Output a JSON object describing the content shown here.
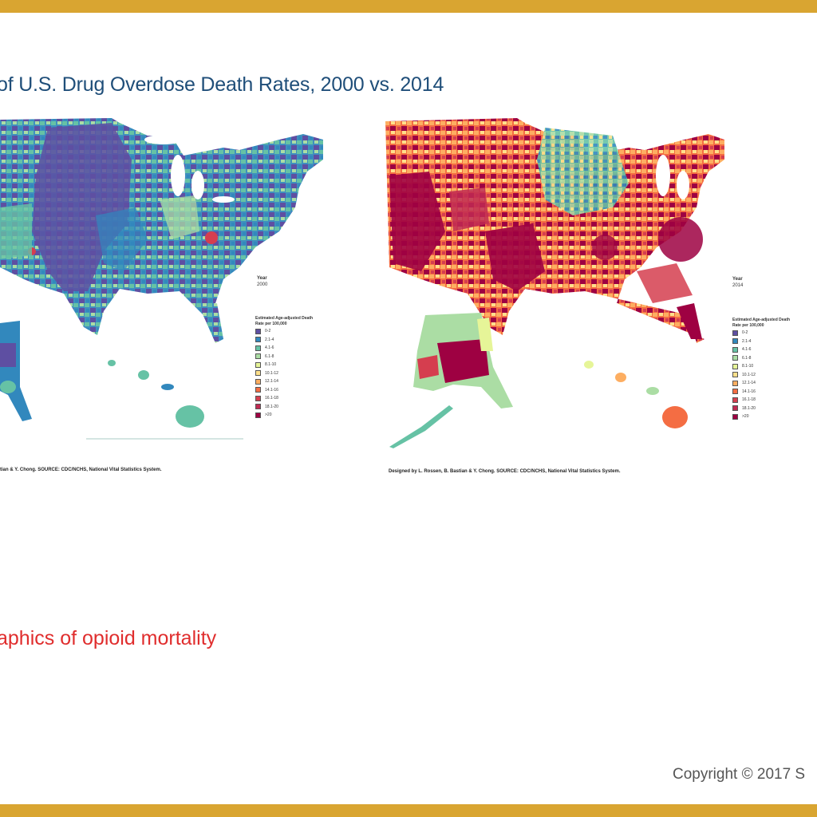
{
  "slide": {
    "title": "of U.S. Drug Overdose Death Rates, 2000 vs. 2014",
    "subtitle": "aphics of opioid mortality",
    "copyright": "Copyright © 2017 S",
    "accent_color": "#d9a531",
    "title_color": "#1f4e79",
    "subtitle_color": "#e02d2d"
  },
  "map_left": {
    "year_label": "Year",
    "year_value": "2000",
    "legend_title": "Estimated Age-adjusted Death Rate per 100,000",
    "credit": "tian & Y. Chong. SOURCE: CDC/NCHS, National Vital Statistics System.",
    "dominant_colors": [
      "#5e4fa2",
      "#3288bd",
      "#66c2a5",
      "#abdda4"
    ]
  },
  "map_right": {
    "year_label": "Year",
    "year_value": "2014",
    "legend_title": "Estimated Age-adjusted Death Rate per 100,000",
    "credit": "Designed by L. Rossen, B. Bastian & Y. Chong. SOURCE: CDC/NCHS, National Vital Statistics System.",
    "dominant_colors": [
      "#9e0142",
      "#d53e4f",
      "#f46d43",
      "#fdae61"
    ]
  },
  "legend": [
    {
      "label": "0-2",
      "color": "#5e4fa2"
    },
    {
      "label": "2.1-4",
      "color": "#3288bd"
    },
    {
      "label": "4.1-6",
      "color": "#66c2a5"
    },
    {
      "label": "6.1-8",
      "color": "#abdda4"
    },
    {
      "label": "8.1-10",
      "color": "#e6f598"
    },
    {
      "label": "10.1-12",
      "color": "#fee08b"
    },
    {
      "label": "12.1-14",
      "color": "#fdae61"
    },
    {
      "label": "14.1-16",
      "color": "#f46d43"
    },
    {
      "label": "16.1-18",
      "color": "#d53e4f"
    },
    {
      "label": "18.1-20",
      "color": "#c02a52"
    },
    {
      "label": ">20",
      "color": "#9e0142"
    }
  ]
}
